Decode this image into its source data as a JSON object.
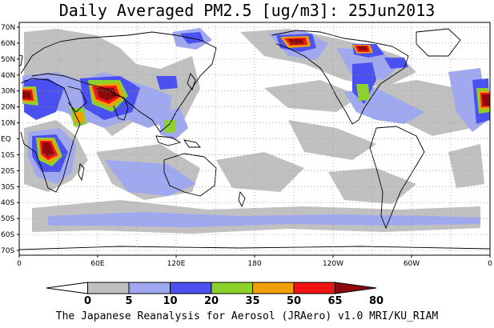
{
  "title": "Daily Averaged PM2.5 [ug/m3]: 25Jun2013",
  "footer": "The Japanese Reanalysis for Aerosol (JRAero) v1.0 MRI/KU_RIAM",
  "lat_labels": [
    "70N",
    "60N",
    "50N",
    "40N",
    "30N",
    "20N",
    "10N",
    "EQ",
    "10S",
    "20S",
    "30S",
    "40S",
    "50S",
    "60S",
    "70S"
  ],
  "lon_labels": [
    "0",
    "60E",
    "120E",
    "180",
    "120W",
    "60W",
    "0"
  ],
  "colorbar": {
    "levels": [
      "0",
      "5",
      "10",
      "20",
      "35",
      "50",
      "65",
      "80"
    ],
    "colors": [
      "#ffffff",
      "#c0c0c0",
      "#a0a8f0",
      "#4b50f0",
      "#8cd22c",
      "#f0a000",
      "#f01414",
      "#8c0a0a"
    ]
  }
}
